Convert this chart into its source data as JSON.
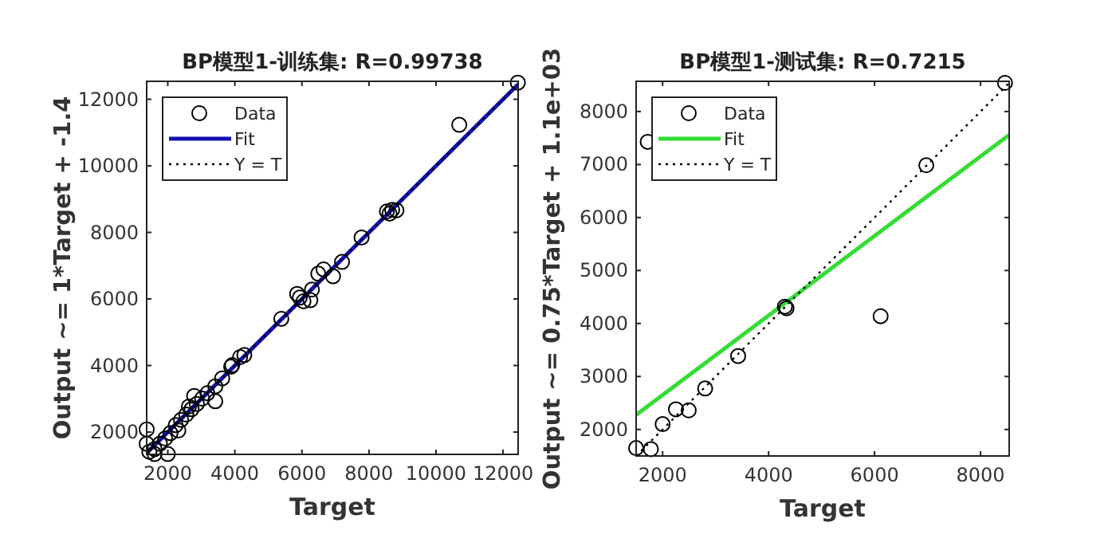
{
  "chart_data": [
    {
      "type": "scatter",
      "title": "BP模型1-训练集: R=0.99738",
      "xlabel": "Target",
      "ylabel": "Output ~= 1*Target + -1.4",
      "xlim": [
        1370,
        12450
      ],
      "ylim": [
        1330,
        12540
      ],
      "xticks": [
        2000,
        4000,
        6000,
        8000,
        10000,
        12000
      ],
      "yticks": [
        2000,
        4000,
        6000,
        8000,
        10000,
        12000
      ],
      "legend": "top left",
      "grid": false,
      "series": [
        {
          "name": "Data",
          "color": "#000000",
          "marker": "circle",
          "x": [
            12440,
            10693,
            8535,
            8693,
            8819,
            8614,
            7780,
            7197,
            6929,
            6646,
            6488,
            6299,
            5858,
            5937,
            6252,
            6047,
            5386,
            4283,
            4157,
            3921,
            3890,
            3622,
            3417,
            3417,
            3181,
            3024,
            2866,
            2787,
            2709,
            2630,
            2551,
            2394,
            2315,
            2236,
            2079,
            2000,
            1921,
            1764,
            1606,
            1606,
            1449,
            1370,
            1370
          ],
          "values": [
            12500,
            11233,
            8630,
            8677,
            8661,
            8565,
            7847,
            7112,
            6681,
            6888,
            6760,
            6281,
            6153,
            6041,
            5962,
            5930,
            5403,
            4316,
            4252,
            4013,
            3965,
            3613,
            2927,
            3374,
            3166,
            3006,
            2847,
            3086,
            2687,
            2767,
            2527,
            2367,
            2048,
            2208,
            1968,
            1340,
            1808,
            1649,
            1489,
            1340,
            1409,
            1649,
            2080
          ]
        },
        {
          "name": "Fit",
          "type": "line",
          "color": "#1010b0",
          "x": [
            1370,
            12450
          ],
          "values": [
            1368.6,
            12448.6
          ]
        },
        {
          "name": "Y = T",
          "type": "line",
          "line_style": "dotted",
          "color": "#000000",
          "x": [
            1370,
            12450
          ],
          "values": [
            1370,
            12450
          ]
        }
      ]
    },
    {
      "type": "scatter",
      "title": "BP模型1-测试集: R=0.7215",
      "xlabel": "Target",
      "ylabel": "Output ~= 0.75*Target + 1.1e+03",
      "xlim": [
        1500,
        8540
      ],
      "ylim": [
        1500,
        8570
      ],
      "xticks": [
        2000,
        4000,
        6000,
        8000
      ],
      "yticks": [
        2000,
        3000,
        4000,
        5000,
        6000,
        7000,
        8000
      ],
      "legend": "top left",
      "grid": false,
      "series": [
        {
          "name": "Data",
          "color": "#000000",
          "marker": "circle",
          "x": [
            1500,
            1779,
            1719,
            2000,
            2251,
            2492,
            2803,
            3425,
            4308,
            4338,
            6114,
            6976,
            8461
          ],
          "values": [
            1649,
            1629,
            7428,
            2100,
            2381,
            2361,
            2773,
            3385,
            4318,
            4288,
            4137,
            6986,
            8540
          ]
        },
        {
          "name": "Fit",
          "type": "line",
          "color": "#33dd33",
          "x": [
            1500,
            8540
          ],
          "values": [
            2275,
            7560
          ]
        },
        {
          "name": "Y = T",
          "type": "line",
          "line_style": "dotted",
          "color": "#000000",
          "x": [
            1500,
            8540
          ],
          "values": [
            1500,
            8540
          ]
        }
      ]
    }
  ]
}
